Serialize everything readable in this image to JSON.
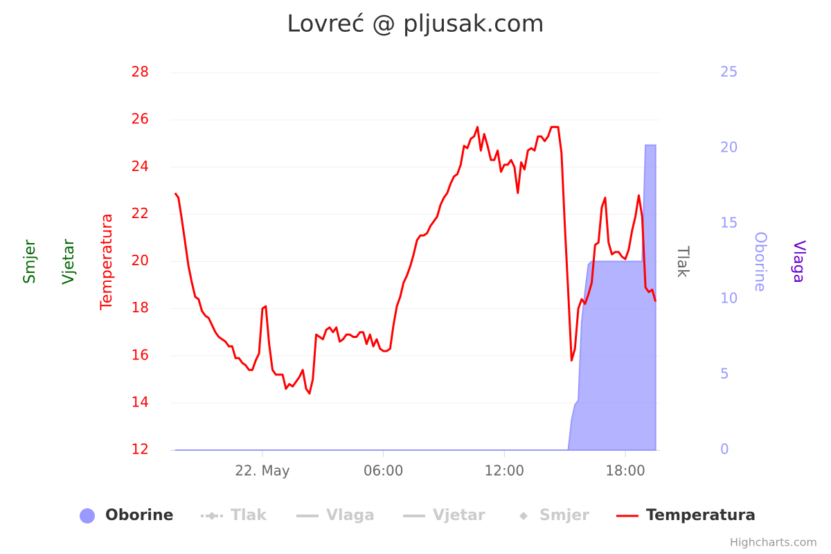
{
  "chart_data": {
    "type": "line",
    "title": "Lovreć @ pljusak.com",
    "credits": "Highcharts.com",
    "x": [
      -260,
      -250,
      -240,
      -230,
      -220,
      -210,
      -200,
      -190,
      -180,
      -170,
      -160,
      -150,
      -140,
      -130,
      -120,
      -110,
      -100,
      -90,
      -80,
      -70,
      -60,
      -50,
      -40,
      -30,
      -20,
      -10,
      0,
      10,
      20,
      30,
      40,
      50,
      60,
      70,
      80,
      90,
      100,
      110,
      120,
      130,
      140,
      150,
      160,
      170,
      180,
      190,
      200,
      210,
      220,
      230,
      240,
      250,
      260,
      270,
      280,
      290,
      300,
      310,
      320,
      330,
      340,
      350,
      360,
      370,
      380,
      390,
      400,
      410,
      420,
      430,
      440,
      450,
      460,
      470,
      480,
      490,
      500,
      510,
      520,
      530,
      540,
      550,
      560,
      570,
      580,
      590,
      600,
      610,
      620,
      630,
      640,
      650,
      660,
      670,
      680,
      690,
      700,
      710,
      720,
      730,
      740,
      750,
      760,
      770,
      780,
      790,
      800,
      810,
      820,
      830,
      840,
      850,
      860,
      870,
      880,
      890,
      900,
      910,
      920,
      930,
      940,
      950,
      960,
      970,
      980,
      990,
      1000,
      1010,
      1020,
      1030,
      1040,
      1050,
      1060,
      1070,
      1080,
      1090,
      1100,
      1110,
      1120,
      1130,
      1140,
      1150,
      1160,
      1170
    ],
    "xlim": [
      -274,
      1183
    ],
    "xticks": [
      {
        "value": 0,
        "label": "22. May"
      },
      {
        "value": 360,
        "label": "06:00"
      },
      {
        "value": 720,
        "label": "12:00"
      },
      {
        "value": 1080,
        "label": "18:00"
      }
    ],
    "ylim": [
      12,
      28
    ],
    "yticks": [
      12,
      14,
      16,
      18,
      20,
      22,
      24,
      26,
      28
    ],
    "y2lim": [
      0,
      25
    ],
    "y2ticks": [
      0,
      5,
      10,
      15,
      20,
      25
    ],
    "grid": true,
    "axes": {
      "left": [
        {
          "title": "Smjer",
          "color": "#006600"
        },
        {
          "title": "Vjetar",
          "color": "#006600"
        },
        {
          "title": "Temperatura",
          "color": "#ff0000"
        }
      ],
      "right": [
        {
          "title": "Tlak",
          "color": "#666666"
        },
        {
          "title": "Oborine",
          "color": "#9999ff"
        },
        {
          "title": "Vlaga",
          "color": "#6600cc"
        }
      ]
    },
    "series": [
      {
        "name": "Oborine",
        "type": "area",
        "axis": "y2",
        "color": "#9999ff",
        "symbol": "circle",
        "visible": true,
        "values": [
          0,
          0,
          0,
          0,
          0,
          0,
          0,
          0,
          0,
          0,
          0,
          0,
          0,
          0,
          0,
          0,
          0,
          0,
          0,
          0,
          0,
          0,
          0,
          0,
          0,
          0,
          0,
          0,
          0,
          0,
          0,
          0,
          0,
          0,
          0,
          0,
          0,
          0,
          0,
          0,
          0,
          0,
          0,
          0,
          0,
          0,
          0,
          0,
          0,
          0,
          0,
          0,
          0,
          0,
          0,
          0,
          0,
          0,
          0,
          0,
          0,
          0,
          0,
          0,
          0,
          0,
          0,
          0,
          0,
          0,
          0,
          0,
          0,
          0,
          0,
          0,
          0,
          0,
          0,
          0,
          0,
          0,
          0,
          0,
          0,
          0,
          0,
          0,
          0,
          0,
          0,
          0,
          0,
          0,
          0,
          0,
          0,
          0,
          0,
          0,
          0,
          0,
          0,
          0,
          0,
          0,
          0,
          0,
          0,
          0,
          0,
          0,
          0,
          0,
          0,
          0,
          0,
          0,
          2.0,
          3.0,
          3.3,
          8.5,
          10.5,
          12.3,
          12.5,
          12.5,
          12.5,
          12.5,
          12.5,
          12.5,
          12.5,
          12.5,
          12.5,
          12.5,
          12.5,
          12.5,
          12.5,
          12.5,
          12.5,
          12.5,
          20.2,
          20.2,
          20.2,
          20.2
        ]
      },
      {
        "name": "Tlak",
        "color": "#cccccc",
        "symbol": "dashed-diamond",
        "visible": false
      },
      {
        "name": "Vlaga",
        "color": "#cccccc",
        "symbol": "line",
        "visible": false
      },
      {
        "name": "Vjetar",
        "color": "#cccccc",
        "symbol": "line",
        "visible": false
      },
      {
        "name": "Smjer",
        "color": "#cccccc",
        "symbol": "diamond",
        "visible": false
      },
      {
        "name": "Temperatura",
        "type": "line",
        "axis": "y",
        "color": "#ff0000",
        "symbol": "line",
        "visible": true,
        "values": [
          22.9,
          22.7,
          21.8,
          20.8,
          19.8,
          19.1,
          18.5,
          18.4,
          17.9,
          17.7,
          17.6,
          17.3,
          17.0,
          16.8,
          16.7,
          16.6,
          16.4,
          16.4,
          15.9,
          15.9,
          15.7,
          15.6,
          15.4,
          15.4,
          15.8,
          16.1,
          18.0,
          18.1,
          16.5,
          15.4,
          15.2,
          15.2,
          15.2,
          14.6,
          14.8,
          14.7,
          14.9,
          15.1,
          15.4,
          14.6,
          14.4,
          15.0,
          16.9,
          16.8,
          16.7,
          17.1,
          17.2,
          17.0,
          17.2,
          16.6,
          16.7,
          16.9,
          16.9,
          16.8,
          16.8,
          17.0,
          17.0,
          16.5,
          16.9,
          16.4,
          16.7,
          16.3,
          16.2,
          16.2,
          16.3,
          17.3,
          18.1,
          18.5,
          19.1,
          19.4,
          19.8,
          20.3,
          20.9,
          21.1,
          21.1,
          21.2,
          21.5,
          21.7,
          21.9,
          22.4,
          22.7,
          22.9,
          23.3,
          23.6,
          23.7,
          24.1,
          24.9,
          24.8,
          25.2,
          25.3,
          25.7,
          24.7,
          25.4,
          24.9,
          24.3,
          24.3,
          24.7,
          23.8,
          24.1,
          24.1,
          24.3,
          24.0,
          22.9,
          24.2,
          23.9,
          24.7,
          24.8,
          24.7,
          25.3,
          25.3,
          25.1,
          25.3,
          25.7,
          25.7,
          25.7,
          24.6,
          21.5,
          18.7,
          15.8,
          16.3,
          18.0,
          18.4,
          18.2,
          18.6,
          19.1,
          20.7,
          20.8,
          22.3,
          22.7,
          20.8,
          20.3,
          20.4,
          20.4,
          20.2,
          20.1,
          20.5,
          21.3,
          21.9,
          22.8,
          21.9,
          18.9,
          18.7,
          18.8,
          18.3
        ]
      }
    ]
  }
}
